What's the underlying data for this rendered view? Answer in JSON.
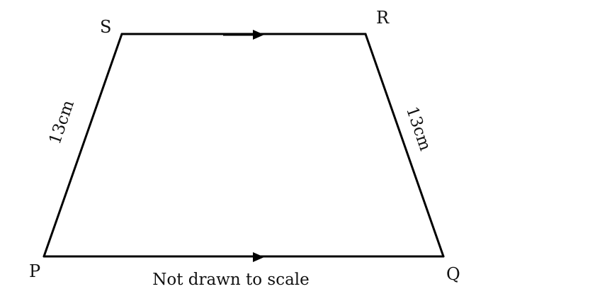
{
  "diagram": {
    "vertices": {
      "P": "P",
      "Q": "Q",
      "R": "R",
      "S": "S"
    },
    "side_labels": {
      "PS": "13cm",
      "QR": "13cm"
    },
    "note": "Not drawn to scale",
    "colors": {
      "stroke": "#000000",
      "text": "#111111"
    }
  }
}
